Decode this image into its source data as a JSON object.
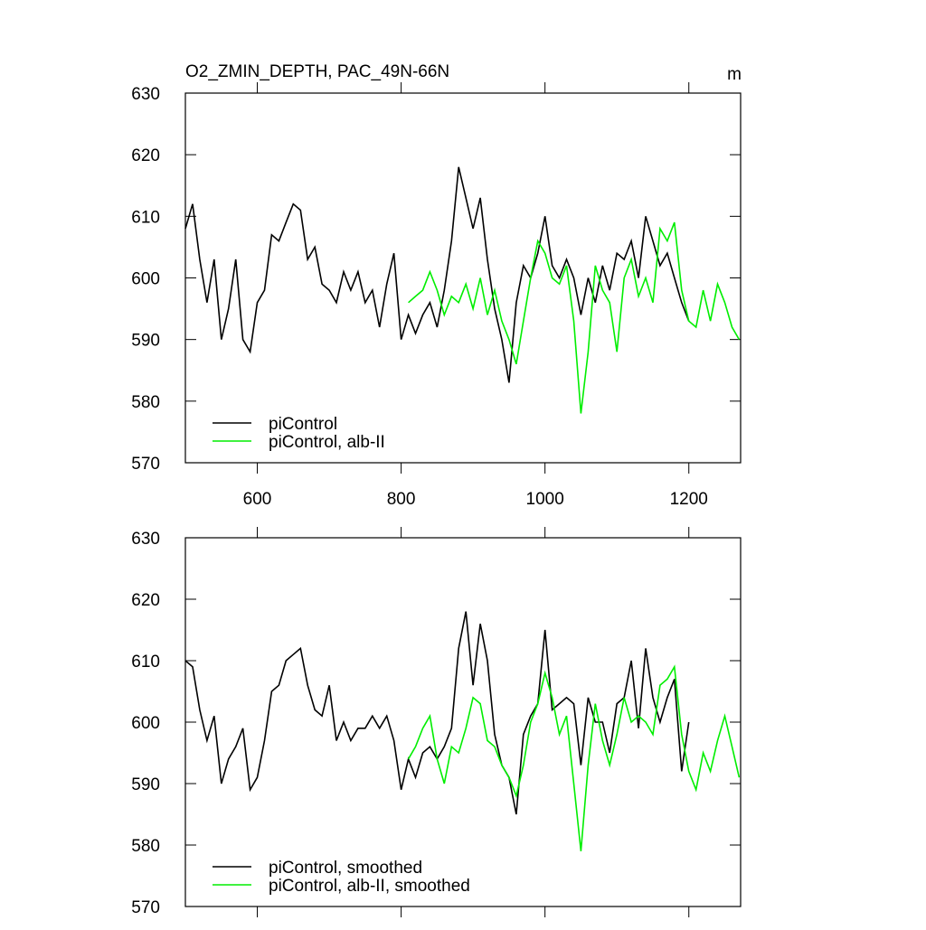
{
  "chart_data": [
    {
      "type": "line",
      "title": "O2_ZMIN_DEPTH, PAC_49N-66N",
      "units": "m",
      "xlim": [
        500,
        1272
      ],
      "xticks": [
        600,
        800,
        1000,
        1200
      ],
      "ylim": [
        570,
        630
      ],
      "yticks": [
        570,
        580,
        590,
        600,
        610,
        620,
        630
      ],
      "legend": "lower left",
      "series": [
        {
          "name": "piControl",
          "color": "#000000",
          "x": [
            500,
            510,
            520,
            530,
            540,
            550,
            560,
            570,
            580,
            590,
            600,
            610,
            620,
            630,
            640,
            650,
            660,
            670,
            680,
            690,
            700,
            710,
            720,
            730,
            740,
            750,
            760,
            770,
            780,
            790,
            800,
            810,
            820,
            830,
            840,
            850,
            860,
            870,
            880,
            890,
            900,
            910,
            920,
            930,
            940,
            950,
            960,
            970,
            980,
            990,
            1000,
            1010,
            1020,
            1030,
            1040,
            1050,
            1060,
            1070,
            1080,
            1090,
            1100,
            1110,
            1120,
            1130,
            1140,
            1150,
            1160,
            1170,
            1180,
            1190,
            1200
          ],
          "values": [
            608,
            612,
            603,
            596,
            603,
            590,
            595,
            603,
            590,
            588,
            596,
            598,
            607,
            606,
            609,
            612,
            611,
            603,
            605,
            599,
            598,
            596,
            601,
            598,
            601,
            596,
            598,
            592,
            599,
            604,
            590,
            594,
            591,
            594,
            596,
            592,
            598,
            606,
            618,
            613,
            608,
            613,
            603,
            595,
            590,
            583,
            596,
            602,
            600,
            604,
            610,
            602,
            600,
            603,
            600,
            594,
            600,
            596,
            602,
            598,
            604,
            603,
            606,
            600,
            610,
            606,
            602,
            604,
            600,
            596,
            593
          ]
        },
        {
          "name": "piControl, alb-II",
          "color": "#00ee00",
          "x": [
            810,
            820,
            830,
            840,
            850,
            860,
            870,
            880,
            890,
            900,
            910,
            920,
            930,
            940,
            950,
            960,
            970,
            980,
            990,
            1000,
            1010,
            1020,
            1030,
            1040,
            1050,
            1060,
            1070,
            1080,
            1090,
            1100,
            1110,
            1120,
            1130,
            1140,
            1150,
            1160,
            1170,
            1180,
            1190,
            1200,
            1210,
            1220,
            1230,
            1240,
            1250,
            1260,
            1270
          ],
          "values": [
            596,
            597,
            598,
            601,
            598,
            594,
            597,
            596,
            599,
            595,
            600,
            594,
            598,
            593,
            590,
            586,
            593,
            600,
            606,
            604,
            600,
            599,
            602,
            593,
            578,
            588,
            602,
            598,
            596,
            588,
            600,
            603,
            597,
            600,
            596,
            608,
            606,
            609,
            598,
            593,
            592,
            598,
            593,
            599,
            596,
            592,
            590
          ]
        }
      ]
    },
    {
      "type": "line",
      "xlim": [
        500,
        1272
      ],
      "ylim": [
        570,
        630
      ],
      "yticks": [
        570,
        580,
        590,
        600,
        610,
        620,
        630
      ],
      "legend": "lower left",
      "series": [
        {
          "name": "piControl, smoothed",
          "color": "#000000",
          "x": [
            500,
            510,
            520,
            530,
            540,
            550,
            560,
            570,
            580,
            590,
            600,
            610,
            620,
            630,
            640,
            650,
            660,
            670,
            680,
            690,
            700,
            710,
            720,
            730,
            740,
            750,
            760,
            770,
            780,
            790,
            800,
            810,
            820,
            830,
            840,
            850,
            860,
            870,
            880,
            890,
            900,
            910,
            920,
            930,
            940,
            950,
            960,
            970,
            980,
            990,
            1000,
            1010,
            1020,
            1030,
            1040,
            1050,
            1060,
            1070,
            1080,
            1090,
            1100,
            1110,
            1120,
            1130,
            1140,
            1150,
            1160,
            1170,
            1180,
            1190,
            1200
          ],
          "values": [
            610,
            609,
            602,
            597,
            601,
            590,
            594,
            596,
            599,
            589,
            591,
            597,
            605,
            606,
            610,
            611,
            612,
            606,
            602,
            601,
            606,
            597,
            600,
            597,
            599,
            599,
            601,
            599,
            601,
            597,
            589,
            594,
            591,
            595,
            596,
            594,
            596,
            599,
            612,
            618,
            606,
            616,
            610,
            598,
            593,
            591,
            585,
            598,
            601,
            603,
            615,
            602,
            603,
            604,
            603,
            593,
            604,
            600,
            600,
            595,
            603,
            604,
            610,
            599,
            612,
            604,
            600,
            604,
            607,
            592,
            600
          ]
        },
        {
          "name": "piControl, alb-II, smoothed",
          "color": "#00ee00",
          "x": [
            810,
            820,
            830,
            840,
            850,
            860,
            870,
            880,
            890,
            900,
            910,
            920,
            930,
            940,
            950,
            960,
            970,
            980,
            990,
            1000,
            1010,
            1020,
            1030,
            1040,
            1050,
            1060,
            1070,
            1080,
            1090,
            1100,
            1110,
            1120,
            1130,
            1140,
            1150,
            1160,
            1170,
            1180,
            1190,
            1200,
            1210,
            1220,
            1230,
            1240,
            1250,
            1260,
            1270
          ],
          "values": [
            594,
            596,
            599,
            601,
            594,
            590,
            596,
            595,
            599,
            604,
            603,
            597,
            596,
            593,
            591,
            588,
            593,
            600,
            603,
            608,
            604,
            598,
            601,
            590,
            579,
            593,
            603,
            597,
            593,
            598,
            604,
            600,
            601,
            600,
            598,
            606,
            607,
            609,
            598,
            592,
            589,
            595,
            592,
            597,
            601,
            596,
            591
          ]
        }
      ]
    }
  ]
}
